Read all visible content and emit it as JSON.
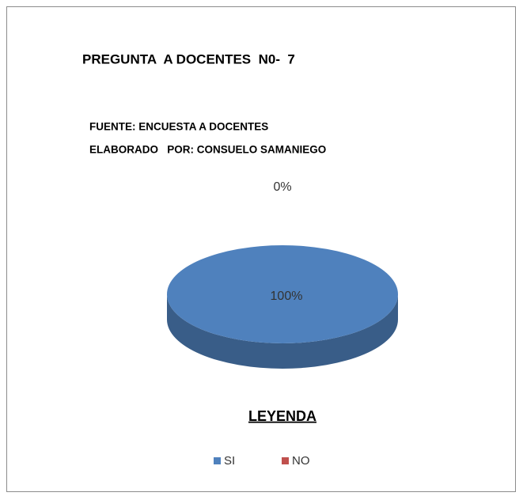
{
  "chart_data": {
    "type": "pie",
    "title": "PREGUNTA  A DOCENTES  N0-  7",
    "subtitle": [
      "FUENTE: ENCUESTA A DOCENTES",
      "ELABORADO   POR: CONSUELO SAMANIEGO"
    ],
    "categories": [
      "SI",
      "NO"
    ],
    "values": [
      100,
      0
    ],
    "value_labels": [
      "100%",
      "0%"
    ],
    "colors": [
      "#4f81bd",
      "#c0504d"
    ],
    "legend_title": "LEYENDA",
    "legend": "bottom"
  }
}
